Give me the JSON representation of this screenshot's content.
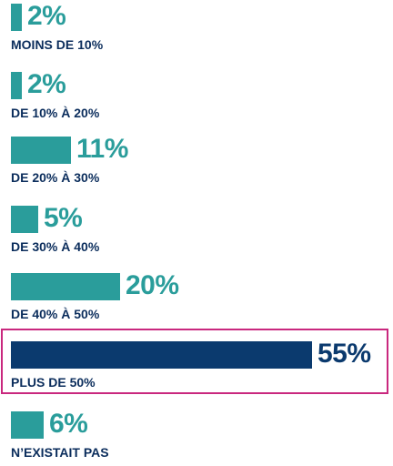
{
  "chart_data": {
    "type": "bar",
    "orientation": "horizontal",
    "title": "",
    "xlabel": "",
    "ylabel": "",
    "categories": [
      "MOINS DE 10%",
      "DE 10% À 20%",
      "DE 20% À 30%",
      "DE 30% À 40%",
      "DE 40% À 50%",
      "PLUS DE 50%",
      "N’EXISTAIT PAS"
    ],
    "values": [
      2,
      2,
      11,
      5,
      20,
      55,
      6
    ],
    "value_labels": [
      "2%",
      "2%",
      "11%",
      "5%",
      "20%",
      "55%",
      "6%"
    ],
    "highlighted_category": "PLUS DE 50%",
    "colors": {
      "bar": "#2a9d9b",
      "highlight_bar": "#0b3a6e",
      "category_text": "#0b2d5c",
      "highlight_border": "#c9287e"
    },
    "xlim": [
      0,
      55
    ]
  }
}
